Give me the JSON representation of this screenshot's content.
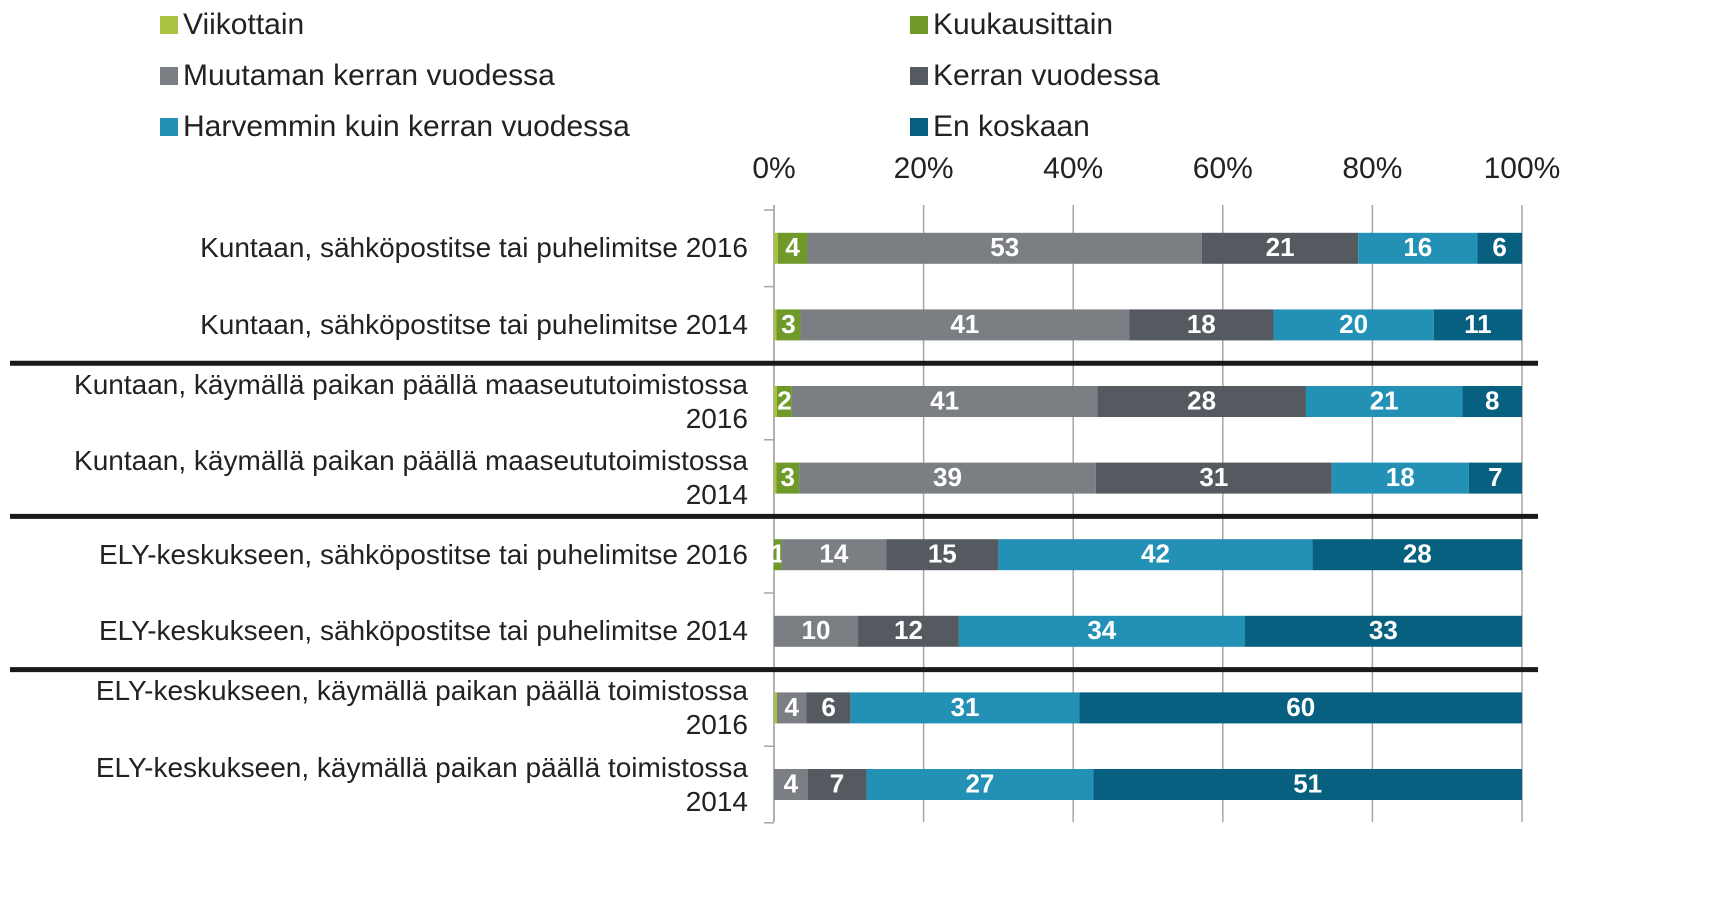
{
  "chart_data": {
    "type": "bar",
    "orientation": "horizontal",
    "stacking": "percent",
    "categories": [
      "Kuntaan, sähköpostitse tai puhelimitse 2016",
      "Kuntaan, sähköpostitse tai puhelimitse 2014",
      "Kuntaan, käymällä paikan päällä maaseututoimistossa 2016",
      "Kuntaan, käymällä paikan päällä maaseututoimistossa 2014",
      "ELY-keskukseen, sähköpostitse tai puhelimitse 2016",
      "ELY-keskukseen, sähköpostitse tai puhelimitse 2014",
      "ELY-keskukseen, käymällä paikan päällä toimistossa 2016",
      "ELY-keskukseen, käymällä paikan päällä toimistossa 2014"
    ],
    "series": [
      {
        "name": "Viikottain",
        "color": "#a9c23f",
        "values": [
          0.5,
          0.3,
          0.4,
          0.3,
          0,
          0,
          0.4,
          0
        ],
        "value_labels": [
          null,
          null,
          null,
          null,
          null,
          null,
          null,
          null
        ]
      },
      {
        "name": "Kuukausittain",
        "color": "#6f9a2a",
        "values": [
          4,
          3,
          2,
          3,
          1,
          0,
          0,
          0
        ]
      },
      {
        "name": "Muutaman kerran vuodessa",
        "color": "#7b7f84",
        "values": [
          53,
          41,
          41,
          39,
          14,
          10,
          4,
          4
        ]
      },
      {
        "name": "Kerran vuodessa",
        "color": "#545a60",
        "values": [
          21,
          18,
          28,
          31,
          15,
          12,
          6,
          7
        ]
      },
      {
        "name": "Harvemmin kuin kerran vuodessa",
        "color": "#2391b5",
        "values": [
          16,
          20,
          21,
          18,
          42,
          34,
          31,
          27
        ]
      },
      {
        "name": "En koskaan",
        "color": "#086080",
        "values": [
          6,
          11,
          8,
          7,
          28,
          33,
          60,
          51
        ]
      }
    ],
    "xlim": [
      0,
      100
    ],
    "xticks": [
      {
        "value": 0,
        "label": "0%"
      },
      {
        "value": 20,
        "label": "20%"
      },
      {
        "value": 40,
        "label": "40%"
      },
      {
        "value": 60,
        "label": "60%"
      },
      {
        "value": 80,
        "label": "80%"
      },
      {
        "value": 100,
        "label": "100%"
      }
    ],
    "grid": true,
    "legend": "top"
  }
}
